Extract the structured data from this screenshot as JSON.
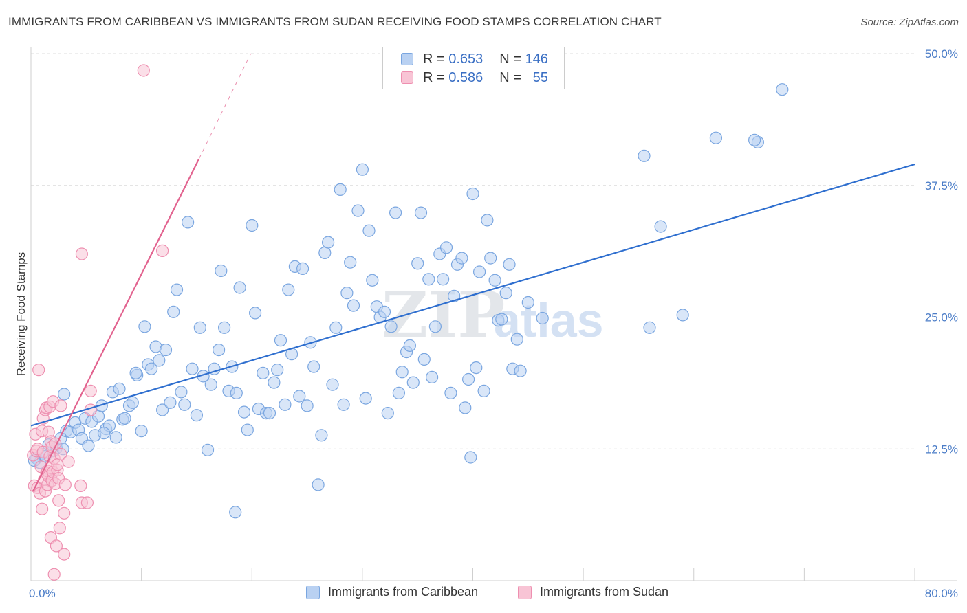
{
  "title": "IMMIGRANTS FROM CARIBBEAN VS IMMIGRANTS FROM SUDAN RECEIVING FOOD STAMPS CORRELATION CHART",
  "source": "Source: ZipAtlas.com",
  "watermark": {
    "zip": "ZIP",
    "atlas": "atlas"
  },
  "chart_data": {
    "type": "scatter",
    "ylabel": "Receiving Food Stamps",
    "xlabel": "",
    "xlim": [
      0,
      80
    ],
    "ylim": [
      0,
      50
    ],
    "x_tick_labels": [
      "0.0%",
      "80.0%"
    ],
    "y_ticks": [
      12.5,
      25.0,
      37.5,
      50.0
    ],
    "y_tick_labels": [
      "12.5%",
      "25.0%",
      "37.5%",
      "50.0%"
    ],
    "grid": true,
    "legend_position": "top-center",
    "series": [
      {
        "name": "Immigrants from Caribbean",
        "color": "#7aa6e0",
        "fill": "#b9d1f2",
        "line_color": "#2f6fcf",
        "R": "0.653",
        "N": "146",
        "trend": {
          "x": [
            0,
            80
          ],
          "y": [
            14.7,
            39.5
          ],
          "dashed": false
        },
        "points": [
          [
            0.5,
            11.6
          ],
          [
            0.8,
            11.2
          ],
          [
            1.0,
            12.0
          ],
          [
            1.3,
            11.8
          ],
          [
            2.0,
            12.3
          ],
          [
            2.3,
            12.6
          ],
          [
            2.7,
            13.5
          ],
          [
            3.0,
            17.7
          ],
          [
            3.2,
            14.2
          ],
          [
            3.6,
            14.1
          ],
          [
            4.0,
            15.0
          ],
          [
            4.3,
            14.3
          ],
          [
            4.6,
            13.5
          ],
          [
            4.9,
            15.4
          ],
          [
            5.2,
            12.8
          ],
          [
            5.5,
            15.1
          ],
          [
            5.8,
            13.8
          ],
          [
            6.1,
            15.6
          ],
          [
            6.4,
            16.6
          ],
          [
            6.8,
            14.4
          ],
          [
            7.1,
            14.7
          ],
          [
            7.4,
            17.9
          ],
          [
            7.7,
            13.6
          ],
          [
            8.0,
            18.2
          ],
          [
            8.3,
            15.3
          ],
          [
            8.5,
            15.4
          ],
          [
            8.9,
            16.6
          ],
          [
            9.2,
            16.9
          ],
          [
            9.6,
            19.5
          ],
          [
            10.0,
            14.2
          ],
          [
            10.3,
            24.1
          ],
          [
            10.6,
            20.5
          ],
          [
            10.9,
            20.1
          ],
          [
            11.3,
            22.2
          ],
          [
            11.6,
            20.9
          ],
          [
            11.9,
            16.2
          ],
          [
            12.2,
            21.9
          ],
          [
            12.6,
            16.9
          ],
          [
            12.9,
            25.5
          ],
          [
            13.2,
            27.6
          ],
          [
            13.6,
            17.9
          ],
          [
            13.9,
            16.7
          ],
          [
            14.2,
            34.0
          ],
          [
            14.6,
            20.1
          ],
          [
            15.0,
            15.7
          ],
          [
            15.3,
            24.0
          ],
          [
            15.6,
            19.4
          ],
          [
            16.0,
            12.4
          ],
          [
            16.3,
            18.6
          ],
          [
            16.6,
            20.1
          ],
          [
            17.0,
            21.9
          ],
          [
            17.2,
            29.4
          ],
          [
            17.5,
            24.0
          ],
          [
            17.9,
            18.0
          ],
          [
            18.2,
            20.3
          ],
          [
            18.6,
            17.8
          ],
          [
            18.9,
            27.8
          ],
          [
            19.3,
            16.0
          ],
          [
            19.6,
            14.3
          ],
          [
            20.0,
            33.7
          ],
          [
            20.3,
            25.4
          ],
          [
            20.6,
            16.3
          ],
          [
            21.0,
            19.7
          ],
          [
            21.3,
            15.9
          ],
          [
            21.6,
            15.9
          ],
          [
            22.0,
            18.8
          ],
          [
            22.3,
            20.0
          ],
          [
            22.6,
            22.8
          ],
          [
            23.0,
            16.7
          ],
          [
            23.3,
            27.6
          ],
          [
            23.6,
            21.5
          ],
          [
            23.9,
            29.8
          ],
          [
            24.3,
            17.5
          ],
          [
            24.6,
            29.6
          ],
          [
            25.0,
            16.6
          ],
          [
            25.3,
            22.6
          ],
          [
            25.6,
            20.3
          ],
          [
            26.0,
            9.1
          ],
          [
            26.3,
            13.8
          ],
          [
            26.6,
            31.1
          ],
          [
            26.9,
            32.1
          ],
          [
            27.3,
            18.6
          ],
          [
            27.6,
            24.0
          ],
          [
            28.0,
            37.1
          ],
          [
            28.3,
            16.7
          ],
          [
            28.6,
            27.3
          ],
          [
            28.9,
            30.2
          ],
          [
            29.2,
            26.1
          ],
          [
            29.6,
            35.1
          ],
          [
            30.0,
            39.0
          ],
          [
            30.3,
            17.3
          ],
          [
            30.6,
            33.2
          ],
          [
            30.9,
            28.5
          ],
          [
            31.3,
            26.0
          ],
          [
            31.6,
            25.0
          ],
          [
            32.0,
            25.5
          ],
          [
            32.3,
            15.9
          ],
          [
            32.6,
            24.1
          ],
          [
            33.0,
            34.9
          ],
          [
            33.3,
            17.8
          ],
          [
            33.6,
            19.8
          ],
          [
            34.0,
            21.7
          ],
          [
            34.3,
            22.3
          ],
          [
            34.6,
            18.8
          ],
          [
            35.0,
            30.1
          ],
          [
            35.3,
            34.9
          ],
          [
            35.6,
            21.0
          ],
          [
            36.0,
            28.6
          ],
          [
            36.3,
            19.3
          ],
          [
            36.6,
            24.1
          ],
          [
            37.0,
            31.0
          ],
          [
            37.3,
            28.6
          ],
          [
            37.6,
            31.6
          ],
          [
            38.0,
            17.8
          ],
          [
            38.3,
            27.0
          ],
          [
            38.6,
            30.0
          ],
          [
            39.0,
            30.6
          ],
          [
            39.3,
            16.4
          ],
          [
            39.6,
            19.1
          ],
          [
            40.0,
            36.7
          ],
          [
            40.3,
            20.2
          ],
          [
            40.6,
            29.3
          ],
          [
            41.0,
            18.0
          ],
          [
            41.3,
            34.2
          ],
          [
            41.6,
            30.6
          ],
          [
            42.0,
            28.5
          ],
          [
            42.3,
            24.7
          ],
          [
            42.6,
            24.8
          ],
          [
            43.0,
            27.3
          ],
          [
            43.3,
            30.0
          ],
          [
            43.6,
            20.1
          ],
          [
            44.0,
            22.9
          ],
          [
            44.3,
            19.9
          ],
          [
            45.0,
            26.4
          ],
          [
            46.3,
            24.9
          ],
          [
            39.8,
            11.7
          ],
          [
            18.5,
            6.5
          ],
          [
            55.5,
            40.3
          ],
          [
            57.0,
            33.6
          ],
          [
            56.0,
            24.0
          ],
          [
            59.0,
            25.2
          ],
          [
            62.0,
            42.0
          ],
          [
            65.8,
            41.6
          ],
          [
            65.5,
            41.8
          ],
          [
            68.0,
            46.6
          ],
          [
            0.3,
            11.4
          ],
          [
            1.6,
            12.9
          ],
          [
            2.9,
            12.5
          ],
          [
            6.6,
            14.0
          ],
          [
            9.5,
            19.7
          ]
        ]
      },
      {
        "name": "Immigrants from Sudan",
        "color": "#ee8fb0",
        "fill": "#f8c4d5",
        "line_color": "#e2638f",
        "R": "0.586",
        "N": "55",
        "trend": {
          "x": [
            0.2,
            15.2
          ],
          "y": [
            8.5,
            40.0
          ],
          "dashed": false
        },
        "trend_extension": {
          "x": [
            15.2,
            19.9
          ],
          "y": [
            40.0,
            50.0
          ],
          "dashed": true
        },
        "points": [
          [
            0.2,
            11.9
          ],
          [
            0.3,
            9.0
          ],
          [
            0.4,
            13.9
          ],
          [
            0.5,
            12.3
          ],
          [
            0.6,
            8.8
          ],
          [
            0.6,
            12.5
          ],
          [
            0.7,
            20.0
          ],
          [
            0.8,
            8.3
          ],
          [
            0.9,
            10.8
          ],
          [
            1.0,
            6.8
          ],
          [
            1.0,
            14.2
          ],
          [
            1.1,
            15.4
          ],
          [
            1.1,
            12.2
          ],
          [
            1.2,
            9.6
          ],
          [
            1.3,
            8.5
          ],
          [
            1.3,
            16.2
          ],
          [
            1.4,
            16.4
          ],
          [
            1.4,
            10.2
          ],
          [
            1.5,
            10.4
          ],
          [
            1.5,
            9.1
          ],
          [
            1.6,
            9.9
          ],
          [
            1.6,
            14.1
          ],
          [
            1.7,
            11.8
          ],
          [
            1.7,
            16.5
          ],
          [
            1.8,
            13.2
          ],
          [
            1.8,
            4.1
          ],
          [
            1.8,
            10.7
          ],
          [
            1.9,
            9.5
          ],
          [
            1.9,
            12.7
          ],
          [
            2.0,
            17.0
          ],
          [
            2.0,
            10.3
          ],
          [
            2.1,
            11.6
          ],
          [
            2.1,
            0.6
          ],
          [
            2.2,
            13.0
          ],
          [
            2.2,
            9.2
          ],
          [
            2.3,
            3.3
          ],
          [
            2.4,
            10.5
          ],
          [
            2.4,
            11.0
          ],
          [
            2.5,
            9.7
          ],
          [
            2.5,
            7.6
          ],
          [
            2.6,
            5.0
          ],
          [
            2.7,
            16.6
          ],
          [
            2.7,
            12.0
          ],
          [
            3.0,
            2.5
          ],
          [
            3.0,
            6.4
          ],
          [
            3.1,
            9.1
          ],
          [
            3.4,
            11.3
          ],
          [
            4.5,
            9.0
          ],
          [
            4.6,
            7.4
          ],
          [
            4.6,
            31.0
          ],
          [
            5.1,
            7.4
          ],
          [
            5.4,
            18.0
          ],
          [
            5.4,
            16.2
          ],
          [
            10.2,
            48.4
          ],
          [
            11.9,
            31.3
          ]
        ]
      }
    ]
  }
}
